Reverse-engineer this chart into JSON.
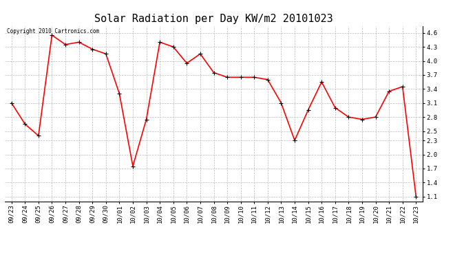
{
  "title": "Solar Radiation per Day KW/m2 20101023",
  "copyright_text": "Copyright 2010 Cartronics.com",
  "dates": [
    "09/23",
    "09/24",
    "09/25",
    "09/26",
    "09/27",
    "09/28",
    "09/29",
    "09/30",
    "10/01",
    "10/02",
    "10/03",
    "10/04",
    "10/05",
    "10/06",
    "10/07",
    "10/08",
    "10/09",
    "10/10",
    "10/11",
    "10/12",
    "10/13",
    "10/14",
    "10/15",
    "10/16",
    "10/17",
    "10/18",
    "10/19",
    "10/20",
    "10/21",
    "10/22",
    "10/23"
  ],
  "values": [
    3.1,
    2.65,
    2.4,
    4.55,
    4.35,
    4.4,
    4.25,
    4.15,
    3.3,
    1.75,
    2.75,
    4.4,
    4.3,
    3.95,
    4.15,
    3.75,
    3.65,
    3.65,
    3.65,
    3.6,
    3.1,
    2.3,
    2.95,
    3.55,
    3.0,
    2.8,
    2.75,
    2.8,
    3.35,
    3.45,
    1.1
  ],
  "line_color": "#ff0000",
  "marker_color": "#000000",
  "background_color": "#ffffff",
  "grid_color": "#bbbbbb",
  "title_fontsize": 11,
  "copyright_fontsize": 5.5,
  "tick_fontsize": 6.5,
  "yticks": [
    1.1,
    1.4,
    1.7,
    2.0,
    2.3,
    2.5,
    2.8,
    3.1,
    3.4,
    3.7,
    4.0,
    4.3,
    4.6
  ],
  "ylim": [
    1.0,
    4.75
  ]
}
